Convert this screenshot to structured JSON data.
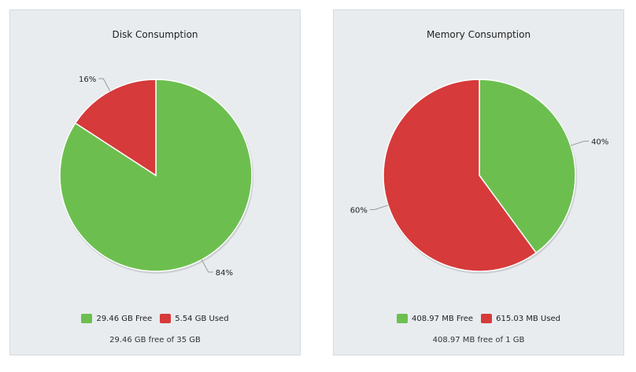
{
  "panels": [
    {
      "title": "Disk Consumption",
      "summary": "29.46 GB free of 35 GB",
      "legend": [
        {
          "label": "29.46 GB Free",
          "color": "#6cbf4f"
        },
        {
          "label": "5.54 GB Used",
          "color": "#d63a3a"
        }
      ]
    },
    {
      "title": "Memory Consumption",
      "summary": "408.97 MB free of 1 GB",
      "legend": [
        {
          "label": "408.97 MB Free",
          "color": "#6cbf4f"
        },
        {
          "label": "615.03 MB Used",
          "color": "#d63a3a"
        }
      ]
    }
  ],
  "chart_data": [
    {
      "type": "pie",
      "title": "Disk Consumption",
      "slices": [
        {
          "name": "29.46 GB Free",
          "value": 29.46,
          "percent_label": "84%",
          "color": "#6cbf4f"
        },
        {
          "name": "5.54 GB Used",
          "value": 5.54,
          "percent_label": "16%",
          "color": "#d63a3a"
        }
      ]
    },
    {
      "type": "pie",
      "title": "Memory Consumption",
      "slices": [
        {
          "name": "408.97 MB Free",
          "value": 408.97,
          "percent_label": "40%",
          "color": "#6cbf4f"
        },
        {
          "name": "615.03 MB Used",
          "value": 615.03,
          "percent_label": "60%",
          "color": "#d63a3a"
        }
      ]
    }
  ]
}
